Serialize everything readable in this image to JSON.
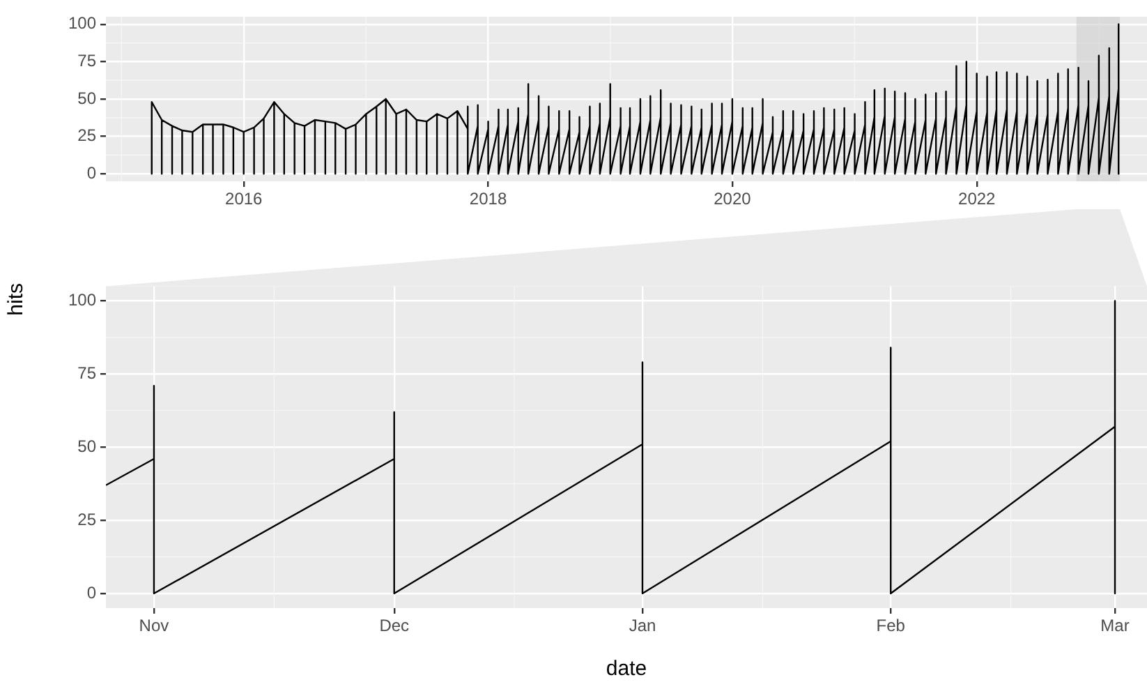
{
  "chart_data": [
    {
      "type": "line",
      "xlim": [
        "2014-11-15",
        "2023-05-25"
      ],
      "xticks": [
        "2016",
        "2018",
        "2020",
        "2022"
      ],
      "ylim": [
        -5,
        105
      ],
      "yticks": [
        0,
        25,
        50,
        75,
        100
      ],
      "grid": true,
      "bands": [
        {
          "axis": "x",
          "from": "2022-10-26",
          "to": "2023-03-05",
          "color": "#cfcfcf"
        }
      ],
      "series": [
        {
          "color": "#000000",
          "x": [
            "2015-04",
            "2015-04",
            "2015-04",
            "2015-05",
            "2015-05",
            "2015-05",
            "2015-06",
            "2015-06",
            "2015-06",
            "2015-07",
            "2015-07",
            "2015-07",
            "2015-08",
            "2015-08",
            "2015-08",
            "2015-09",
            "2015-09",
            "2015-09",
            "2015-10",
            "2015-10",
            "2015-10",
            "2015-11",
            "2015-11",
            "2015-11",
            "2015-12",
            "2015-12",
            "2015-12",
            "2016-01",
            "2016-01",
            "2016-01",
            "2016-02",
            "2016-02",
            "2016-02",
            "2016-03",
            "2016-03",
            "2016-03",
            "2016-04",
            "2016-04",
            "2016-04",
            "2016-05",
            "2016-05",
            "2016-05",
            "2016-06",
            "2016-06",
            "2016-06",
            "2016-07",
            "2016-07",
            "2016-07",
            "2016-08",
            "2016-08",
            "2016-08",
            "2016-09",
            "2016-09",
            "2016-09",
            "2016-10",
            "2016-10",
            "2016-10",
            "2016-11",
            "2016-11",
            "2016-11",
            "2016-12",
            "2016-12",
            "2016-12",
            "2017-01",
            "2017-01",
            "2017-01",
            "2017-02",
            "2017-02",
            "2017-02",
            "2017-03",
            "2017-03",
            "2017-03",
            "2017-04",
            "2017-04",
            "2017-04",
            "2017-05",
            "2017-05",
            "2017-05",
            "2017-06",
            "2017-06",
            "2017-06",
            "2017-07",
            "2017-07",
            "2017-07",
            "2017-08",
            "2017-08",
            "2017-08",
            "2017-09",
            "2017-09",
            "2017-09",
            "2017-10",
            "2017-10",
            "2017-10",
            "2017-11",
            "2017-11",
            "2017-11",
            "2017-12",
            "2017-12",
            "2017-12",
            "2018-01",
            "2018-01",
            "2018-01",
            "2018-02",
            "2018-02",
            "2018-02",
            "2018-03",
            "2018-03",
            "2018-03",
            "2018-04",
            "2018-04",
            "2018-04",
            "2018-05",
            "2018-05",
            "2018-05",
            "2018-06",
            "2018-06",
            "2018-06",
            "2018-07",
            "2018-07",
            "2018-07",
            "2018-08",
            "2018-08",
            "2018-08",
            "2018-09",
            "2018-09",
            "2018-09",
            "2018-10",
            "2018-10",
            "2018-10",
            "2018-11",
            "2018-11",
            "2018-11",
            "2018-12",
            "2018-12",
            "2018-12",
            "2019-01",
            "2019-01",
            "2019-01",
            "2019-02",
            "2019-02",
            "2019-02",
            "2019-03",
            "2019-03",
            "2019-03",
            "2019-04",
            "2019-04",
            "2019-04",
            "2019-05",
            "2019-05",
            "2019-05",
            "2019-06",
            "2019-06",
            "2019-06",
            "2019-07",
            "2019-07",
            "2019-07",
            "2019-08",
            "2019-08",
            "2019-08",
            "2019-09",
            "2019-09",
            "2019-09",
            "2019-10",
            "2019-10",
            "2019-10",
            "2019-11",
            "2019-11",
            "2019-11",
            "2019-12",
            "2019-12",
            "2019-12",
            "2020-01",
            "2020-01",
            "2020-01",
            "2020-02",
            "2020-02",
            "2020-02",
            "2020-03",
            "2020-03",
            "2020-03",
            "2020-04",
            "2020-04",
            "2020-04",
            "2020-05",
            "2020-05",
            "2020-05",
            "2020-06",
            "2020-06",
            "2020-06",
            "2020-07",
            "2020-07",
            "2020-07",
            "2020-08",
            "2020-08",
            "2020-08",
            "2020-09",
            "2020-09",
            "2020-09",
            "2020-10",
            "2020-10",
            "2020-10",
            "2020-11",
            "2020-11",
            "2020-11",
            "2020-12",
            "2020-12",
            "2020-12",
            "2021-01",
            "2021-01",
            "2021-01",
            "2021-02",
            "2021-02",
            "2021-02",
            "2021-03",
            "2021-03",
            "2021-03",
            "2021-04",
            "2021-04",
            "2021-04",
            "2021-05",
            "2021-05",
            "2021-05",
            "2021-06",
            "2021-06",
            "2021-06",
            "2021-07",
            "2021-07",
            "2021-07",
            "2021-08",
            "2021-08",
            "2021-08",
            "2021-09",
            "2021-09",
            "2021-09",
            "2021-10",
            "2021-10",
            "2021-10",
            "2021-11",
            "2021-11",
            "2021-11",
            "2021-12",
            "2021-12",
            "2021-12",
            "2022-01",
            "2022-01",
            "2022-01",
            "2022-02",
            "2022-02",
            "2022-02",
            "2022-03",
            "2022-03",
            "2022-03",
            "2022-04",
            "2022-04",
            "2022-04",
            "2022-05",
            "2022-05",
            "2022-05",
            "2022-06",
            "2022-06",
            "2022-06",
            "2022-07",
            "2022-07",
            "2022-07",
            "2022-08",
            "2022-08",
            "2022-08",
            "2022-09",
            "2022-09",
            "2022-09",
            "2022-10",
            "2022-10",
            "2022-10",
            "2022-11",
            "2022-11",
            "2022-11",
            "2022-12",
            "2022-12",
            "2022-12",
            "2023-01",
            "2023-01",
            "2023-01",
            "2023-02",
            "2023-02",
            "2023-02",
            "2023-03",
            "2023-03",
            "2023-03"
          ],
          "values": [
            48,
            0,
            48,
            36,
            0,
            36,
            32,
            0,
            32,
            29,
            0,
            29,
            28,
            0,
            28,
            33,
            0,
            33,
            33,
            0,
            33,
            33,
            0,
            33,
            31,
            0,
            31,
            28,
            0,
            28,
            31,
            0,
            31,
            37,
            0,
            37,
            48,
            0,
            48,
            40,
            0,
            40,
            34,
            0,
            34,
            32,
            0,
            32,
            36,
            0,
            36,
            35,
            0,
            35,
            34,
            0,
            34,
            30,
            0,
            30,
            33,
            0,
            33,
            40,
            0,
            40,
            45,
            0,
            45,
            50,
            0,
            50,
            40,
            0,
            40,
            43,
            0,
            43,
            36,
            0,
            36,
            35,
            0,
            35,
            40,
            0,
            40,
            37,
            0,
            37,
            42,
            0,
            42,
            30,
            45,
            0,
            32,
            46,
            0,
            30,
            35,
            0,
            32,
            43,
            0,
            33,
            43,
            0,
            35,
            44,
            0,
            40,
            60,
            0,
            36,
            52,
            0,
            32,
            45,
            0,
            30,
            42,
            0,
            30,
            42,
            0,
            28,
            38,
            0,
            32,
            45,
            0,
            34,
            47,
            0,
            38,
            60,
            0,
            32,
            44,
            0,
            32,
            44,
            0,
            35,
            50,
            0,
            36,
            52,
            0,
            38,
            56,
            0,
            34,
            47,
            0,
            33,
            46,
            0,
            32,
            45,
            0,
            31,
            43,
            0,
            33,
            47,
            0,
            33,
            47,
            0,
            35,
            50,
            0,
            32,
            44,
            0,
            31,
            44,
            0,
            34,
            50,
            0,
            28,
            38,
            0,
            30,
            42,
            0,
            30,
            42,
            0,
            29,
            40,
            0,
            30,
            42,
            0,
            31,
            44,
            0,
            30,
            43,
            0,
            31,
            44,
            0,
            29,
            40,
            0,
            33,
            48,
            0,
            38,
            56,
            0,
            39,
            57,
            0,
            38,
            55,
            0,
            37,
            54,
            0,
            35,
            50,
            0,
            36,
            53,
            0,
            37,
            54,
            0,
            38,
            55,
            0,
            45,
            72,
            0,
            46,
            75,
            0,
            42,
            67,
            0,
            41,
            65,
            0,
            43,
            68,
            0,
            43,
            68,
            0,
            42,
            67,
            0,
            41,
            65,
            0,
            40,
            62,
            0,
            40,
            63,
            0,
            42,
            67,
            0,
            44,
            70,
            0,
            46,
            71,
            0,
            46,
            62,
            0,
            51,
            79,
            0,
            52,
            84,
            0,
            57,
            100,
            0
          ]
        }
      ]
    },
    {
      "type": "line",
      "xlabel": "date",
      "ylabel": "hits",
      "xlim": [
        "2022-10-26",
        "2023-03-05"
      ],
      "xticks": [
        {
          "value": "2022-11-01",
          "label": "Nov"
        },
        {
          "value": "2022-12-01",
          "label": "Dec"
        },
        {
          "value": "2023-01-01",
          "label": "Jan"
        },
        {
          "value": "2023-02-01",
          "label": "Feb"
        },
        {
          "value": "2023-03-01",
          "label": "Mar"
        }
      ],
      "ylim": [
        -5,
        105
      ],
      "yticks": [
        0,
        25,
        50,
        75,
        100
      ],
      "grid": true,
      "series": [
        {
          "color": "#000000",
          "x": [
            "2022-10-26",
            "2022-11-01",
            "2022-11-01",
            "2022-11-01",
            "2022-12-01",
            "2022-12-01",
            "2022-12-01",
            "2023-01-01",
            "2023-01-01",
            "2023-01-01",
            "2023-02-01",
            "2023-02-01",
            "2023-02-01",
            "2023-03-01",
            "2023-03-01",
            "2023-03-01"
          ],
          "values": [
            37,
            46,
            71,
            0,
            46,
            62,
            0,
            51,
            79,
            0,
            52,
            84,
            0,
            57,
            100,
            0
          ]
        }
      ]
    }
  ]
}
